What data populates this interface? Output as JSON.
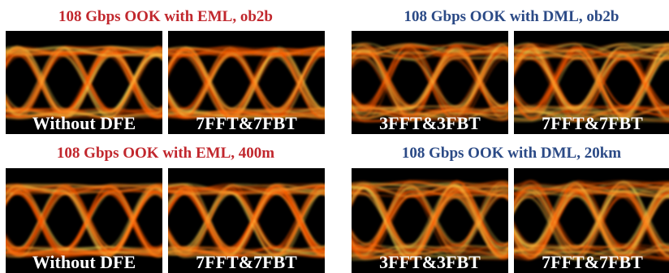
{
  "groups": [
    {
      "title": "108 Gbps OOK with EML, ob2b",
      "panels": [
        {
          "label": "Without DFE"
        },
        {
          "label": "7FFT&7FBT"
        }
      ]
    },
    {
      "title": "108 Gbps OOK with DML, ob2b",
      "panels": [
        {
          "label": "3FFT&3FBT"
        },
        {
          "label": "7FFT&7FBT"
        }
      ]
    },
    {
      "title": "108 Gbps OOK with EML, 400m",
      "panels": [
        {
          "label": "Without DFE"
        },
        {
          "label": "7FFT&7FBT"
        }
      ]
    },
    {
      "title": "108 Gbps OOK with DML, 20km",
      "panels": [
        {
          "label": "3FFT&3FBT"
        },
        {
          "label": "7FFT&7FBT"
        }
      ]
    }
  ]
}
